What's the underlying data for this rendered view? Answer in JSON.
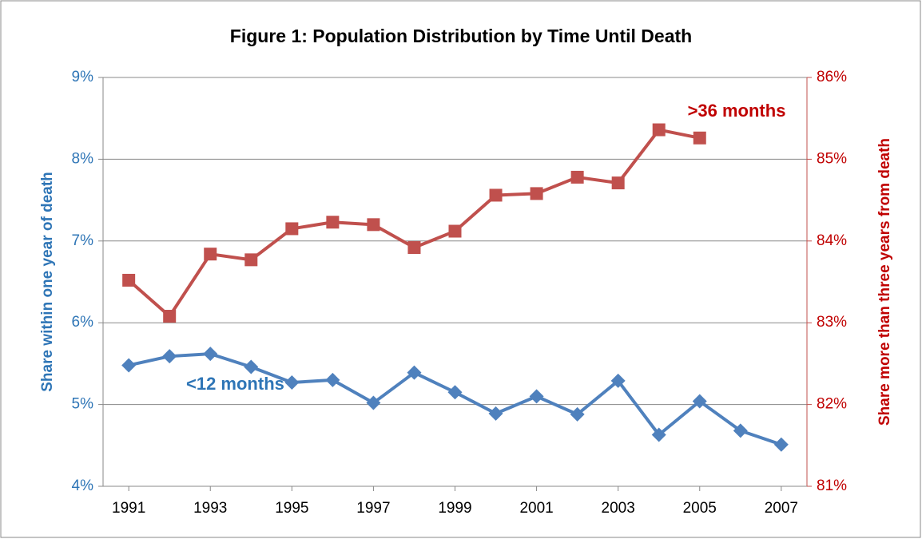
{
  "chart_data": {
    "type": "line",
    "title": "Figure 1: Population Distribution by Time Until Death",
    "ylabel": "Share within one year of death",
    "y2label": "Share more than three years from death",
    "x": [
      1991,
      1992,
      1993,
      1994,
      1995,
      1996,
      1997,
      1998,
      1999,
      2000,
      2001,
      2002,
      2003,
      2004,
      2005,
      2006,
      2007
    ],
    "xlim": [
      1990.37,
      2007.63
    ],
    "xticks": [
      1991,
      1993,
      1995,
      1997,
      1999,
      2001,
      2003,
      2005,
      2007
    ],
    "ylim": [
      4,
      9
    ],
    "yticks": [
      {
        "value": 4,
        "label": "4%"
      },
      {
        "value": 5,
        "label": "5%"
      },
      {
        "value": 6,
        "label": "6%"
      },
      {
        "value": 7,
        "label": "7%"
      },
      {
        "value": 8,
        "label": "8%"
      },
      {
        "value": 9,
        "label": "9%"
      }
    ],
    "y2lim": [
      81,
      86
    ],
    "y2ticks": [
      {
        "value": 81,
        "label": "81%"
      },
      {
        "value": 82,
        "label": "82%"
      },
      {
        "value": 83,
        "label": "83%"
      },
      {
        "value": 84,
        "label": "84%"
      },
      {
        "value": 85,
        "label": "85%"
      },
      {
        "value": 86,
        "label": "86%"
      }
    ],
    "grid": true,
    "series": [
      {
        "name": "<12 months",
        "color": "#4f81bd",
        "marker": "diamond",
        "values": [
          5.48,
          5.59,
          5.62,
          5.46,
          5.27,
          5.3,
          5.02,
          5.39,
          5.15,
          4.89,
          5.1,
          4.88,
          5.29,
          4.63,
          5.04,
          4.68,
          4.51
        ]
      },
      {
        "name": ">36 months",
        "color": "#c0504d",
        "marker": "square",
        "axis": "y2",
        "values": [
          83.52,
          83.08,
          83.84,
          83.77,
          84.15,
          84.23,
          84.2,
          83.92,
          84.12,
          84.56,
          84.58,
          84.78,
          84.71,
          85.36,
          85.26,
          null,
          null
        ]
      }
    ]
  }
}
